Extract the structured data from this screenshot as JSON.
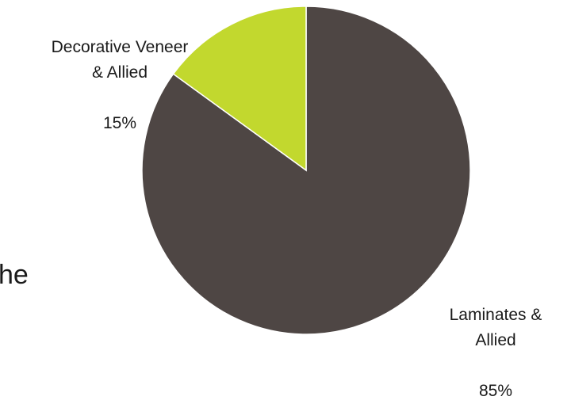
{
  "fragment_text": "he",
  "chart_data": {
    "type": "pie",
    "title": "",
    "legend": "none",
    "slices": [
      {
        "label": "Laminates &\nAllied",
        "value": 85,
        "value_label": "85%",
        "color": "#4e4644"
      },
      {
        "label": "Decorative Veneer\n& Allied",
        "value": 15,
        "value_label": "15%",
        "color": "#c2d82e"
      }
    ]
  }
}
